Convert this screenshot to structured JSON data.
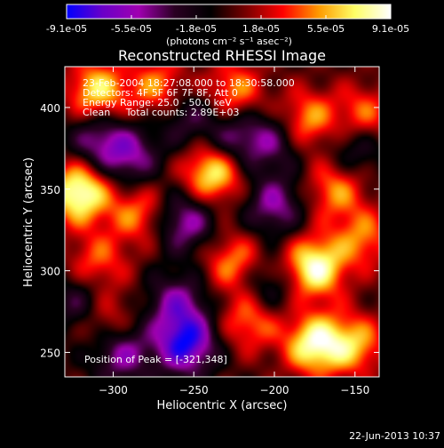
{
  "colorbar": {
    "ticks": [
      "-9.1e-05",
      "-5.5e-05",
      "-1.8e-05",
      "1.8e-05",
      "5.5e-05",
      "9.1e-05"
    ],
    "unit_label": "(photons cm⁻² s⁻¹ asec⁻²)",
    "colors": [
      "#0000ff",
      "#6a00c8",
      "#a000b0",
      "#2a0022",
      "#000000",
      "#7a0000",
      "#ff0000",
      "#ff9a00",
      "#ffff66",
      "#ffffff"
    ]
  },
  "chart_data": {
    "type": "heatmap",
    "title": "Reconstructed RHESSI Image",
    "xlabel": "Heliocentric X (arcsec)",
    "ylabel": "Heliocentric Y (arcsec)",
    "xlim": [
      -330,
      -135
    ],
    "ylim": [
      235,
      425
    ],
    "x_ticks": [
      -300,
      -250,
      -200,
      -150
    ],
    "y_ticks": [
      250,
      300,
      350,
      400
    ],
    "value_range": [
      -9.1e-05,
      9.1e-05
    ],
    "info_lines": [
      "23-Feb-2004 18:27:08.000 to 18:30:58.000",
      "Detectors: 4F 5F 6F 7F 8F, Att 0",
      "Energy Range: 25.0 - 50.0 keV",
      "Clean     Total counts: 2.89E+03"
    ],
    "peak_label": "Position of Peak = [-321,348]",
    "grid": false,
    "sources": [
      {
        "x": -310,
        "y": 410,
        "amp": 0.75
      },
      {
        "x": -272,
        "y": 412,
        "amp": 0.55
      },
      {
        "x": -225,
        "y": 410,
        "amp": 0.55
      },
      {
        "x": -180,
        "y": 392,
        "amp": 0.6
      },
      {
        "x": -145,
        "y": 395,
        "amp": 0.5
      },
      {
        "x": -321,
        "y": 348,
        "amp": 1.0
      },
      {
        "x": -238,
        "y": 360,
        "amp": 0.85
      },
      {
        "x": -162,
        "y": 350,
        "amp": 0.55
      },
      {
        "x": -285,
        "y": 335,
        "amp": 0.5
      },
      {
        "x": -175,
        "y": 302,
        "amp": 0.95
      },
      {
        "x": -225,
        "y": 305,
        "amp": 0.55
      },
      {
        "x": -310,
        "y": 305,
        "amp": 0.45
      },
      {
        "x": -145,
        "y": 320,
        "amp": 0.5
      },
      {
        "x": -215,
        "y": 270,
        "amp": 0.55
      },
      {
        "x": -175,
        "y": 255,
        "amp": 0.9
      },
      {
        "x": -305,
        "y": 270,
        "amp": 0.45
      },
      {
        "x": -150,
        "y": 255,
        "amp": 0.6
      },
      {
        "x": -255,
        "y": 395,
        "amp": -0.4
      },
      {
        "x": -225,
        "y": 380,
        "amp": -0.5
      },
      {
        "x": -290,
        "y": 370,
        "amp": -0.55
      },
      {
        "x": -255,
        "y": 330,
        "amp": -0.6
      },
      {
        "x": -200,
        "y": 340,
        "amp": -0.55
      },
      {
        "x": -255,
        "y": 255,
        "amp": -0.9
      },
      {
        "x": -295,
        "y": 250,
        "amp": -0.6
      },
      {
        "x": -260,
        "y": 280,
        "amp": -0.55
      },
      {
        "x": -320,
        "y": 280,
        "amp": -0.45
      },
      {
        "x": -200,
        "y": 380,
        "amp": -0.45
      },
      {
        "x": -205,
        "y": 290,
        "amp": -0.4
      },
      {
        "x": -150,
        "y": 375,
        "amp": -0.4
      },
      {
        "x": -310,
        "y": 380,
        "amp": -0.5
      }
    ]
  },
  "footer": {
    "timestamp": "22-Jun-2013 10:37"
  }
}
